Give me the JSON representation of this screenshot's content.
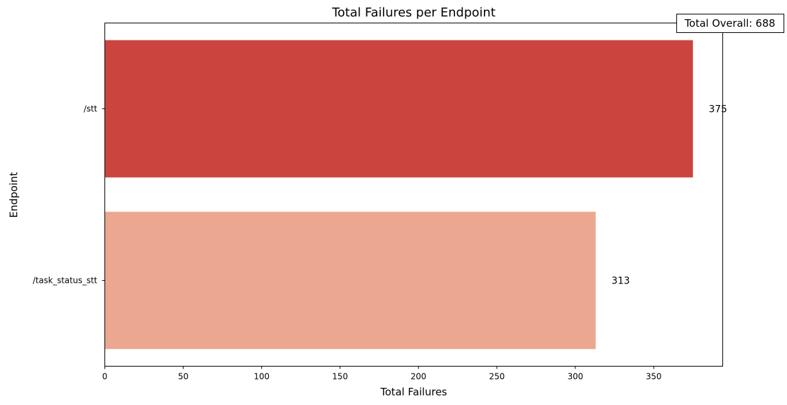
{
  "chart_data": {
    "type": "bar",
    "orientation": "horizontal",
    "title": "Total Failures per Endpoint",
    "xlabel": "Total Failures",
    "ylabel": "Endpoint",
    "categories": [
      "/stt",
      "/task_status_stt"
    ],
    "values": [
      375,
      313
    ],
    "data_labels": [
      "375",
      "313"
    ],
    "bar_colors": [
      "#cb453e",
      "#eca791"
    ],
    "xlim": [
      0,
      394
    ],
    "xticks": [
      0,
      50,
      100,
      150,
      200,
      250,
      300,
      350
    ],
    "xtick_labels": [
      "0",
      "50",
      "100",
      "150",
      "200",
      "250",
      "300",
      "350"
    ],
    "grid": false,
    "annotation": "Total Overall: 688"
  }
}
